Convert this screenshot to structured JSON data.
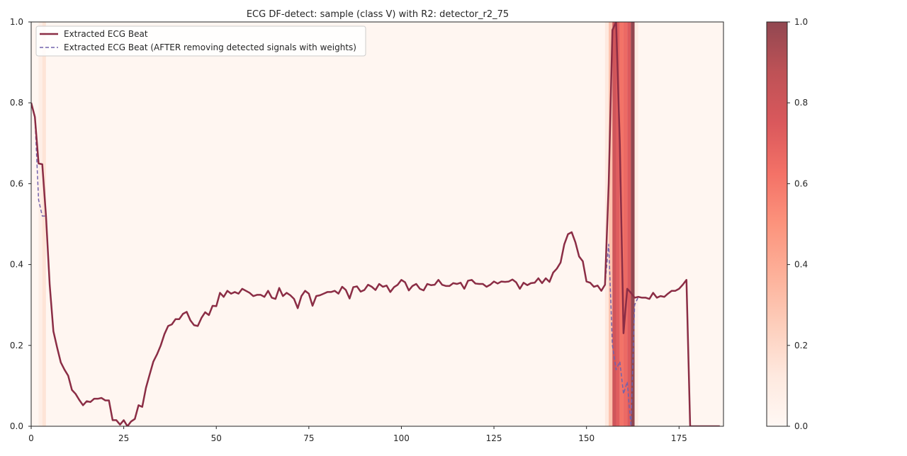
{
  "chart_data": {
    "type": "line",
    "title": "ECG DF-detect: sample (class V) with R2: detector_r2_75",
    "xlabel": "",
    "ylabel": "",
    "xlim": [
      0,
      187
    ],
    "ylim": [
      0,
      1.0
    ],
    "x_ticks": [
      0,
      25,
      50,
      75,
      100,
      125,
      150,
      175
    ],
    "y_ticks": [
      0.0,
      0.2,
      0.4,
      0.6,
      0.8,
      1.0
    ],
    "legend_position": "top-left",
    "grid": false,
    "series": [
      {
        "name": "Extracted ECG Beat",
        "color": "#8b2d45",
        "style": "solid",
        "x": [
          0,
          1,
          2,
          3,
          4,
          5,
          6,
          7,
          8,
          9,
          10,
          11,
          12,
          13,
          14,
          15,
          16,
          17,
          18,
          19,
          20,
          21,
          22,
          23,
          24,
          25,
          26,
          27,
          28,
          29,
          30,
          31,
          32,
          33,
          34,
          35,
          36,
          37,
          38,
          39,
          40,
          41,
          42,
          43,
          44,
          45,
          46,
          47,
          48,
          49,
          50,
          51,
          52,
          53,
          54,
          55,
          56,
          57,
          58,
          59,
          60,
          61,
          62,
          63,
          64,
          65,
          66,
          67,
          68,
          69,
          70,
          71,
          72,
          73,
          74,
          75,
          76,
          77,
          78,
          79,
          80,
          81,
          82,
          83,
          84,
          85,
          86,
          87,
          88,
          89,
          90,
          91,
          92,
          93,
          94,
          95,
          96,
          97,
          98,
          99,
          100,
          101,
          102,
          103,
          104,
          105,
          106,
          107,
          108,
          109,
          110,
          111,
          112,
          113,
          114,
          115,
          116,
          117,
          118,
          119,
          120,
          121,
          122,
          123,
          124,
          125,
          126,
          127,
          128,
          129,
          130,
          131,
          132,
          133,
          134,
          135,
          136,
          137,
          138,
          139,
          140,
          141,
          142,
          143,
          144,
          145,
          146,
          147,
          148,
          149,
          150,
          151,
          152,
          153,
          154,
          155,
          156,
          157,
          158,
          159,
          160,
          161,
          162,
          163,
          164,
          165,
          166,
          167,
          168,
          169,
          170,
          171,
          172,
          173,
          174,
          175,
          176,
          177,
          178,
          179,
          180,
          181,
          182,
          183,
          184,
          185,
          186
        ],
        "values": [
          0.8,
          0.765,
          0.65,
          0.648,
          0.52,
          0.35,
          0.235,
          0.195,
          0.158,
          0.14,
          0.125,
          0.09,
          0.08,
          0.065,
          0.052,
          0.062,
          0.06,
          0.068,
          0.068,
          0.07,
          0.064,
          0.064,
          0.015,
          0.015,
          0.004,
          0.015,
          0.0,
          0.012,
          0.018,
          0.052,
          0.048,
          0.095,
          0.128,
          0.16,
          0.178,
          0.2,
          0.228,
          0.248,
          0.252,
          0.265,
          0.265,
          0.278,
          0.283,
          0.262,
          0.25,
          0.248,
          0.268,
          0.282,
          0.275,
          0.298,
          0.297,
          0.33,
          0.32,
          0.335,
          0.328,
          0.332,
          0.328,
          0.34,
          0.335,
          0.33,
          0.322,
          0.325,
          0.325,
          0.32,
          0.335,
          0.318,
          0.315,
          0.342,
          0.322,
          0.33,
          0.324,
          0.315,
          0.292,
          0.322,
          0.335,
          0.328,
          0.298,
          0.322,
          0.324,
          0.328,
          0.332,
          0.332,
          0.335,
          0.328,
          0.345,
          0.337,
          0.316,
          0.344,
          0.346,
          0.333,
          0.337,
          0.35,
          0.345,
          0.337,
          0.352,
          0.345,
          0.348,
          0.332,
          0.344,
          0.35,
          0.362,
          0.356,
          0.336,
          0.347,
          0.352,
          0.34,
          0.336,
          0.352,
          0.349,
          0.35,
          0.362,
          0.35,
          0.347,
          0.347,
          0.354,
          0.352,
          0.355,
          0.34,
          0.36,
          0.362,
          0.353,
          0.352,
          0.352,
          0.345,
          0.35,
          0.358,
          0.353,
          0.358,
          0.357,
          0.358,
          0.363,
          0.356,
          0.34,
          0.355,
          0.349,
          0.354,
          0.355,
          0.366,
          0.354,
          0.366,
          0.357,
          0.38,
          0.39,
          0.405,
          0.45,
          0.475,
          0.48,
          0.455,
          0.42,
          0.408,
          0.358,
          0.355,
          0.345,
          0.348,
          0.335,
          0.35,
          0.6,
          0.98,
          1.0,
          0.7,
          0.23,
          0.34,
          0.33,
          0.318,
          0.32,
          0.318,
          0.318,
          0.315,
          0.33,
          0.318,
          0.322,
          0.32,
          0.328,
          0.335,
          0.335,
          0.34,
          0.35,
          0.362,
          0.0,
          0.0,
          0.0,
          0.0,
          0.0,
          0.0,
          0.0,
          0.0,
          0.0
        ]
      },
      {
        "name": "Extracted ECG Beat (AFTER removing detected signals with weights)",
        "color": "#7262ac",
        "style": "dashed",
        "x": [
          0,
          1,
          2,
          3,
          4,
          5,
          6,
          7,
          8,
          9,
          10,
          11,
          12,
          13,
          14,
          15,
          16,
          17,
          18,
          19,
          20,
          21,
          22,
          23,
          24,
          25,
          26,
          27,
          28,
          29,
          30,
          31,
          32,
          33,
          34,
          35,
          36,
          37,
          38,
          39,
          40,
          41,
          42,
          43,
          44,
          45,
          46,
          47,
          48,
          49,
          50,
          51,
          52,
          53,
          54,
          55,
          56,
          57,
          58,
          59,
          60,
          61,
          62,
          63,
          64,
          65,
          66,
          67,
          68,
          69,
          70,
          71,
          72,
          73,
          74,
          75,
          76,
          77,
          78,
          79,
          80,
          81,
          82,
          83,
          84,
          85,
          86,
          87,
          88,
          89,
          90,
          91,
          92,
          93,
          94,
          95,
          96,
          97,
          98,
          99,
          100,
          101,
          102,
          103,
          104,
          105,
          106,
          107,
          108,
          109,
          110,
          111,
          112,
          113,
          114,
          115,
          116,
          117,
          118,
          119,
          120,
          121,
          122,
          123,
          124,
          125,
          126,
          127,
          128,
          129,
          130,
          131,
          132,
          133,
          134,
          135,
          136,
          137,
          138,
          139,
          140,
          141,
          142,
          143,
          144,
          145,
          146,
          147,
          148,
          149,
          150,
          151,
          152,
          153,
          154,
          155,
          156,
          157,
          158,
          159,
          160,
          161,
          162,
          163,
          164,
          165,
          166,
          167,
          168,
          169,
          170,
          171,
          172,
          173,
          174,
          175,
          176,
          177,
          178,
          179,
          180,
          181,
          182,
          183,
          184,
          185,
          186
        ],
        "values": [
          0.8,
          0.765,
          0.56,
          0.52,
          0.52,
          0.35,
          0.235,
          0.195,
          0.158,
          0.14,
          0.125,
          0.09,
          0.08,
          0.065,
          0.052,
          0.062,
          0.06,
          0.068,
          0.068,
          0.07,
          0.064,
          0.064,
          0.015,
          0.015,
          0.004,
          0.015,
          0.0,
          0.012,
          0.018,
          0.052,
          0.048,
          0.095,
          0.128,
          0.16,
          0.178,
          0.2,
          0.228,
          0.248,
          0.252,
          0.265,
          0.265,
          0.278,
          0.283,
          0.262,
          0.25,
          0.248,
          0.268,
          0.282,
          0.275,
          0.298,
          0.297,
          0.33,
          0.32,
          0.335,
          0.328,
          0.332,
          0.328,
          0.34,
          0.335,
          0.33,
          0.322,
          0.325,
          0.325,
          0.32,
          0.335,
          0.318,
          0.315,
          0.342,
          0.322,
          0.33,
          0.324,
          0.315,
          0.292,
          0.322,
          0.335,
          0.328,
          0.298,
          0.322,
          0.324,
          0.328,
          0.332,
          0.332,
          0.335,
          0.328,
          0.345,
          0.337,
          0.316,
          0.344,
          0.346,
          0.333,
          0.337,
          0.35,
          0.345,
          0.337,
          0.352,
          0.345,
          0.348,
          0.332,
          0.344,
          0.35,
          0.362,
          0.356,
          0.336,
          0.347,
          0.352,
          0.34,
          0.336,
          0.352,
          0.349,
          0.35,
          0.362,
          0.35,
          0.347,
          0.347,
          0.354,
          0.352,
          0.355,
          0.34,
          0.36,
          0.362,
          0.353,
          0.352,
          0.352,
          0.345,
          0.35,
          0.358,
          0.353,
          0.358,
          0.357,
          0.358,
          0.363,
          0.356,
          0.34,
          0.355,
          0.349,
          0.354,
          0.355,
          0.366,
          0.354,
          0.366,
          0.357,
          0.38,
          0.39,
          0.405,
          0.45,
          0.475,
          0.48,
          0.455,
          0.42,
          0.408,
          0.358,
          0.355,
          0.345,
          0.348,
          0.335,
          0.35,
          0.45,
          0.2,
          0.14,
          0.16,
          0.08,
          0.11,
          0.0,
          0.3,
          0.32,
          0.318,
          0.318,
          0.315,
          0.33,
          0.318,
          0.322,
          0.32,
          0.328,
          0.335,
          0.335,
          0.34,
          0.35,
          0.362,
          0.0,
          0.0,
          0.0,
          0.0,
          0.0,
          0.0,
          0.0,
          0.0,
          0.0
        ]
      }
    ],
    "weight_bands": [
      {
        "x0": 0,
        "x1": 2,
        "weight": 0.02
      },
      {
        "x0": 2,
        "x1": 3,
        "weight": 0.08
      },
      {
        "x0": 3,
        "x1": 4,
        "weight": 0.15
      },
      {
        "x0": 4,
        "x1": 155,
        "weight": 0.02
      },
      {
        "x0": 155,
        "x1": 156,
        "weight": 0.12
      },
      {
        "x0": 156,
        "x1": 157,
        "weight": 0.3
      },
      {
        "x0": 157,
        "x1": 158,
        "weight": 0.8
      },
      {
        "x0": 158,
        "x1": 159,
        "weight": 0.72
      },
      {
        "x0": 159,
        "x1": 160,
        "weight": 0.62
      },
      {
        "x0": 160,
        "x1": 161,
        "weight": 0.66
      },
      {
        "x0": 161,
        "x1": 162,
        "weight": 0.74
      },
      {
        "x0": 162,
        "x1": 163,
        "weight": 1.0
      },
      {
        "x0": 163,
        "x1": 164,
        "weight": 0.1
      },
      {
        "x0": 164,
        "x1": 187,
        "weight": 0.02
      }
    ],
    "colorbar": {
      "min": 0.0,
      "max": 1.0,
      "ticks": [
        0.0,
        0.2,
        0.4,
        0.6,
        0.8,
        1.0
      ],
      "colormap": "Reds"
    }
  }
}
